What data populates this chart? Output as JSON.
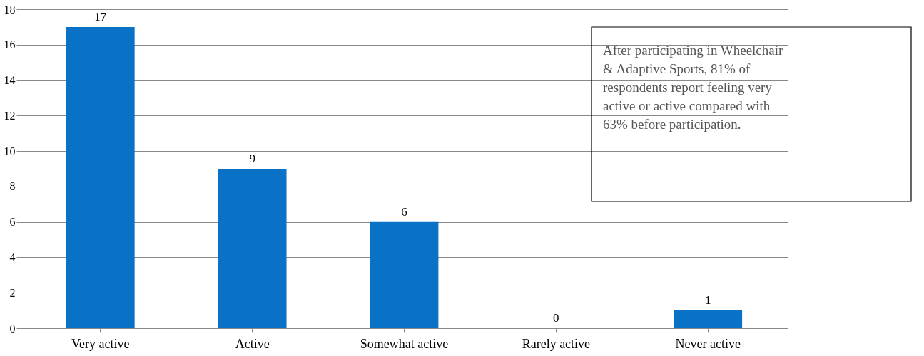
{
  "chart_data": {
    "type": "bar",
    "categories": [
      "Very active",
      "Active",
      "Somewhat active",
      "Rarely active",
      "Never active"
    ],
    "values": [
      17,
      9,
      6,
      0,
      1
    ],
    "color": "#0a72c6",
    "ylim": [
      0,
      18
    ],
    "yticks": [
      0,
      2,
      4,
      6,
      8,
      10,
      12,
      14,
      16,
      18
    ],
    "grid": "y",
    "data_labels": true,
    "annotations": [
      "After participating in Wheelchair & Adaptive Sports, 81% of respondents report feeling very active or active compared with 63% before participation."
    ]
  }
}
